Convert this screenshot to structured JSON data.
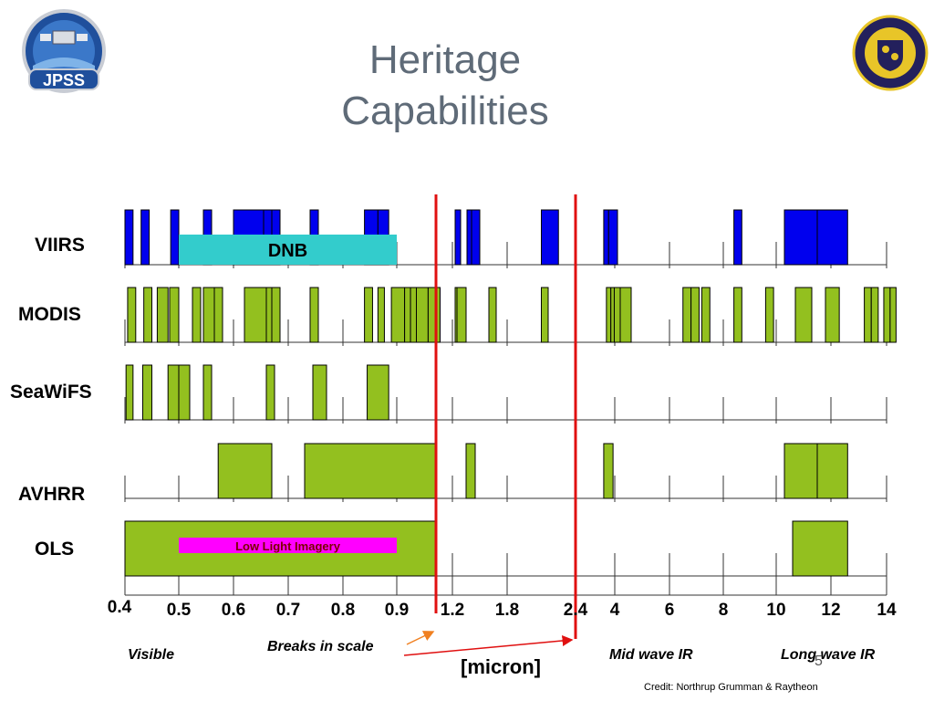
{
  "slide": {
    "title_line1": "Heritage",
    "title_line2": "Capabilities",
    "slide_number": "5",
    "credit": "Credit: Northrup Grumman & Raytheon"
  },
  "logos": {
    "left": {
      "icon": "jpss-logo-icon",
      "text": "JPSS"
    },
    "right": {
      "icon": "nrl-seal-icon"
    }
  },
  "chart_data": {
    "type": "bar",
    "title": "",
    "x_ticks": [
      "0.4",
      "0.5",
      "0.6",
      "0.7",
      "0.8",
      "0.9",
      "1.2",
      "1.8",
      "2.4",
      "4",
      "6",
      "8",
      "10",
      "12",
      "14"
    ],
    "x_unit": "[micron]",
    "region_labels": [
      "Visible",
      "Mid wave IR",
      "Long wave IR"
    ],
    "annotation": "Breaks in scale",
    "colors": {
      "viirs_band": "#0000ee",
      "heritage_band": "#93c01f",
      "dnb": "#33cccc",
      "low_light": "#ff00ff",
      "break_line": "#e01010",
      "arrow": "#e01010"
    },
    "instruments": [
      {
        "name": "VIIRS",
        "bands": [
          [
            0.4,
            0.415
          ],
          [
            0.43,
            0.445
          ],
          [
            0.485,
            0.5
          ],
          [
            0.545,
            0.56
          ],
          [
            0.6,
            0.655
          ],
          [
            0.655,
            0.67
          ],
          [
            0.67,
            0.685
          ],
          [
            0.74,
            0.755
          ],
          [
            0.84,
            0.865
          ],
          [
            0.865,
            0.885
          ],
          [
            1.23,
            1.29
          ],
          [
            1.36,
            1.41
          ],
          [
            1.41,
            1.5
          ],
          [
            2.1,
            2.25
          ],
          [
            3.55,
            3.75
          ],
          [
            3.75,
            4.1
          ],
          [
            8.4,
            8.7
          ],
          [
            10.3,
            11.5
          ],
          [
            11.5,
            12.6
          ]
        ],
        "overlay": {
          "label": "DNB",
          "range": [
            0.5,
            0.9
          ]
        }
      },
      {
        "name": "MODIS",
        "bands": [
          [
            0.405,
            0.42
          ],
          [
            0.435,
            0.45
          ],
          [
            0.46,
            0.48
          ],
          [
            0.483,
            0.5
          ],
          [
            0.525,
            0.54
          ],
          [
            0.545,
            0.565
          ],
          [
            0.565,
            0.58
          ],
          [
            0.62,
            0.66
          ],
          [
            0.66,
            0.67
          ],
          [
            0.67,
            0.685
          ],
          [
            0.74,
            0.755
          ],
          [
            0.84,
            0.855
          ],
          [
            0.865,
            0.877
          ],
          [
            0.89,
            0.92
          ],
          [
            0.92,
            0.935
          ],
          [
            0.935,
            0.95
          ],
          [
            0.95,
            0.98
          ],
          [
            0.98,
            1.05
          ],
          [
            1.23,
            1.25
          ],
          [
            1.25,
            1.35
          ],
          [
            1.6,
            1.68
          ],
          [
            2.1,
            2.16
          ],
          [
            3.66,
            3.84
          ],
          [
            3.84,
            3.98
          ],
          [
            3.98,
            4.2
          ],
          [
            4.2,
            4.6
          ],
          [
            6.5,
            6.8
          ],
          [
            6.8,
            7.1
          ],
          [
            7.2,
            7.5
          ],
          [
            8.4,
            8.7
          ],
          [
            9.6,
            9.9
          ],
          [
            10.7,
            11.3
          ],
          [
            11.8,
            12.3
          ],
          [
            13.2,
            13.45
          ],
          [
            13.45,
            13.7
          ],
          [
            13.9,
            14.15
          ],
          [
            14.15,
            14.4
          ]
        ]
      },
      {
        "name": "SeaWiFS",
        "bands": [
          [
            0.402,
            0.415
          ],
          [
            0.433,
            0.45
          ],
          [
            0.48,
            0.5
          ],
          [
            0.5,
            0.52
          ],
          [
            0.545,
            0.56
          ],
          [
            0.66,
            0.675
          ],
          [
            0.745,
            0.77
          ],
          [
            0.845,
            0.885
          ]
        ]
      },
      {
        "name": "AVHRR",
        "bands": [
          [
            0.572,
            0.67
          ],
          [
            0.73,
            1.0
          ],
          [
            1.35,
            1.45
          ],
          [
            3.55,
            3.93
          ],
          [
            10.3,
            11.5
          ],
          [
            11.5,
            12.6
          ]
        ]
      },
      {
        "name": "OLS",
        "bands": [
          [
            0.4,
            1.0
          ],
          [
            10.6,
            12.6
          ]
        ],
        "overlay": {
          "label": "Low Light Imagery",
          "range": [
            0.5,
            0.9
          ]
        }
      }
    ]
  }
}
